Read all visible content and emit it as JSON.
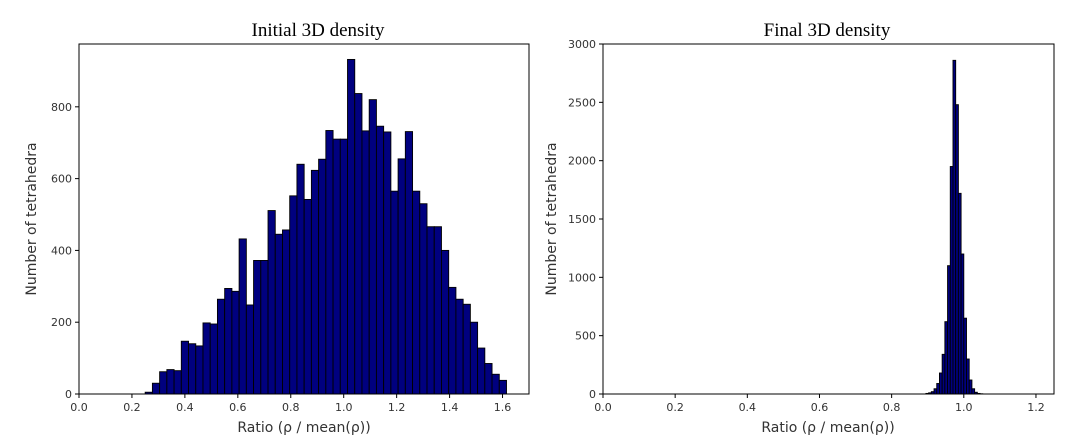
{
  "chart_data": [
    {
      "type": "bar",
      "title": "Initial 3D density",
      "xlabel": "Ratio (ρ / mean(ρ))",
      "ylabel": "Number of tetrahedra",
      "xlim": [
        0.0,
        1.7
      ],
      "ylim": [
        0,
        975
      ],
      "xticks": [
        "0.0",
        "0.2",
        "0.4",
        "0.6",
        "0.8",
        "1.0",
        "1.2",
        "1.4",
        "1.6"
      ],
      "yticks": [
        "0",
        "200",
        "400",
        "600",
        "800"
      ],
      "bin_start": 0.25,
      "bin_width": 0.0273,
      "values": [
        5,
        30,
        62,
        68,
        65,
        147,
        140,
        134,
        198,
        195,
        264,
        294,
        286,
        432,
        248,
        372,
        372,
        511,
        445,
        457,
        552,
        640,
        542,
        623,
        654,
        734,
        710,
        710,
        932,
        837,
        733,
        820,
        746,
        730,
        565,
        655,
        731,
        565,
        530,
        466,
        466,
        400,
        297,
        264,
        250,
        200,
        128,
        85,
        55,
        38,
        0
      ],
      "bar_color": "#00007f",
      "grid": false
    },
    {
      "type": "bar",
      "title": "Final 3D density",
      "xlabel": "Ratio (ρ / mean(ρ))",
      "ylabel": "Number of tetrahedra",
      "xlim": [
        0.0,
        1.25
      ],
      "ylim": [
        0,
        3000
      ],
      "xticks": [
        "0.0",
        "0.2",
        "0.4",
        "0.6",
        "0.8",
        "1.0",
        "1.2"
      ],
      "yticks": [
        "0",
        "500",
        "1000",
        "1500",
        "2000",
        "2500",
        "3000"
      ],
      "bin_start": 0.895,
      "bin_width": 0.0075,
      "values": [
        5,
        10,
        20,
        45,
        90,
        180,
        340,
        620,
        1100,
        1950,
        2860,
        2480,
        1720,
        1200,
        650,
        300,
        120,
        45,
        15,
        5,
        2
      ],
      "bar_color": "#00007f",
      "grid": false
    }
  ]
}
